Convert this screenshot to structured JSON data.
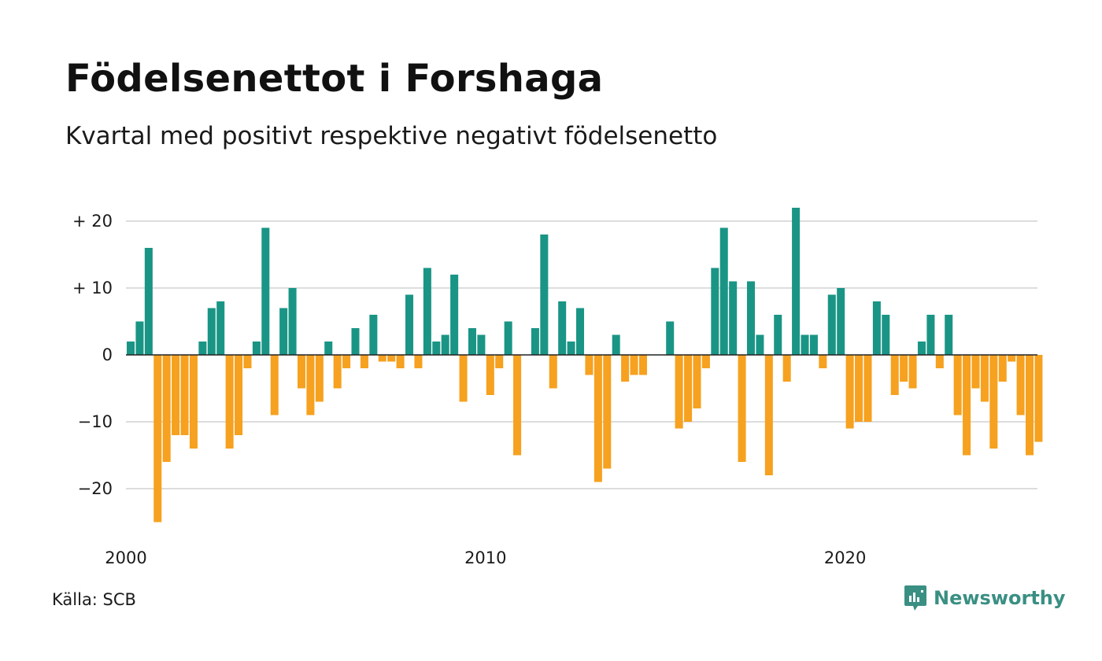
{
  "chart_data": {
    "type": "bar",
    "title": "Födelsenettot i Forshaga",
    "subtitle": "Kvartal med positivt respektive negativt födelsenetto",
    "x_start": 2000,
    "x_step": 0.25,
    "values": [
      2,
      5,
      16,
      -25,
      -16,
      -12,
      -12,
      -14,
      2,
      7,
      8,
      -14,
      -12,
      -2,
      2,
      19,
      -9,
      7,
      10,
      -5,
      -9,
      -7,
      2,
      -5,
      -2,
      4,
      -2,
      6,
      -1,
      -1,
      -2,
      9,
      -2,
      13,
      2,
      3,
      12,
      -7,
      4,
      3,
      -6,
      -2,
      5,
      -15,
      0,
      4,
      18,
      -5,
      8,
      2,
      7,
      -3,
      -19,
      -17,
      3,
      -4,
      -3,
      -3,
      0,
      0,
      5,
      -11,
      -10,
      -8,
      -2,
      13,
      19,
      11,
      -16,
      11,
      3,
      -18,
      6,
      -4,
      22,
      3,
      3,
      -2,
      9,
      10,
      -11,
      -10,
      -10,
      8,
      6,
      -6,
      -4,
      -5,
      2,
      6,
      -2,
      6,
      -9,
      -15,
      -5,
      -7,
      -14,
      -4,
      -1,
      -9,
      -15,
      -13
    ],
    "yticks": [
      20,
      10,
      0,
      -10,
      -20
    ],
    "ytick_labels": [
      "+ 20",
      "+ 10",
      "0",
      "−10",
      "−20"
    ],
    "xticks": [
      2000,
      2010,
      2020
    ],
    "xtick_labels": [
      "2000",
      "2010",
      "2020"
    ],
    "ylim": [
      -26,
      23
    ],
    "grid": true,
    "colors": {
      "positive": "#1a9585",
      "negative": "#f6a11f",
      "grid": "#dddddd",
      "zero_line": "#222222"
    }
  },
  "footer": {
    "source": "Källa: SCB",
    "brand": "Newsworthy",
    "brand_icon": "newsworthy-logo-icon"
  }
}
